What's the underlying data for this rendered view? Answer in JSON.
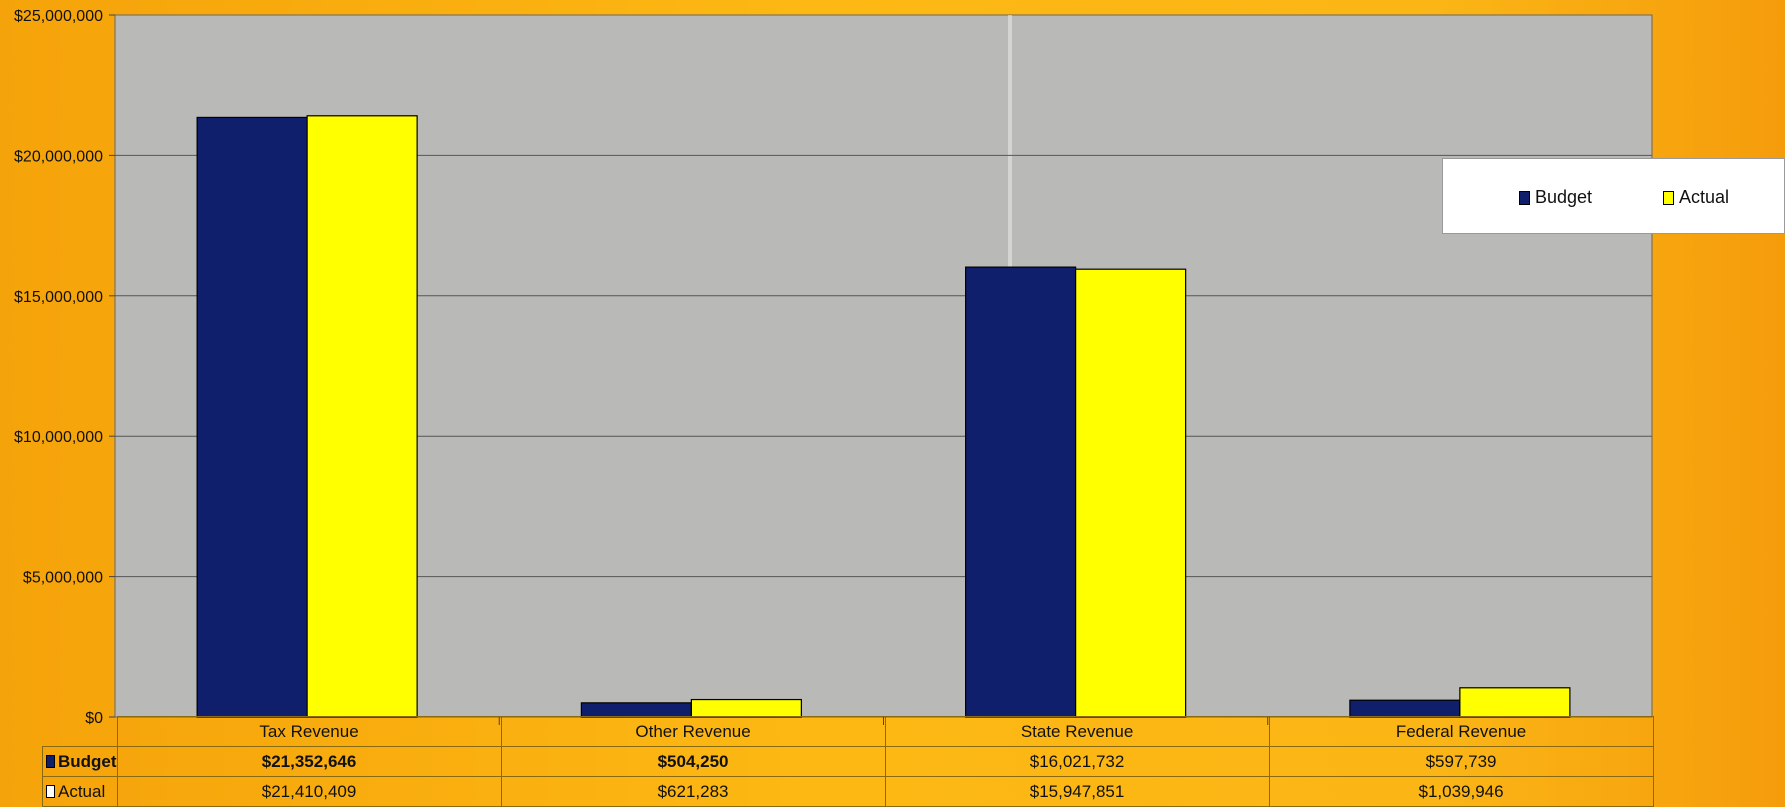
{
  "colors": {
    "budget": "#0f1f6b",
    "actual": "#ffff00",
    "plot_bg": "#b9bab8",
    "frame": "#fdb813"
  },
  "chart_data": {
    "type": "bar",
    "categories": [
      "Tax Revenue",
      "Other Revenue",
      "State Revenue",
      "Federal Revenue"
    ],
    "series": [
      {
        "name": "Budget",
        "values": [
          21352646,
          504250,
          16021732,
          597739
        ]
      },
      {
        "name": "Actual",
        "values": [
          21410409,
          621283,
          15947851,
          1039946
        ]
      }
    ],
    "ylim": [
      0,
      25000000
    ],
    "yticks": [
      "$0",
      "$5,000,000",
      "$10,000,000",
      "$15,000,000",
      "$20,000,000",
      "$25,000,000"
    ],
    "grid": true,
    "legend_position": "top-right",
    "data_table": {
      "rows": [
        {
          "label": "Budget",
          "cells": [
            "$21,352,646",
            "$504,250",
            "$16,021,732",
            "$597,739"
          ]
        },
        {
          "label": "Actual",
          "cells": [
            "$21,410,409",
            "$621,283",
            "$15,947,851",
            "$1,039,946"
          ]
        }
      ]
    }
  }
}
